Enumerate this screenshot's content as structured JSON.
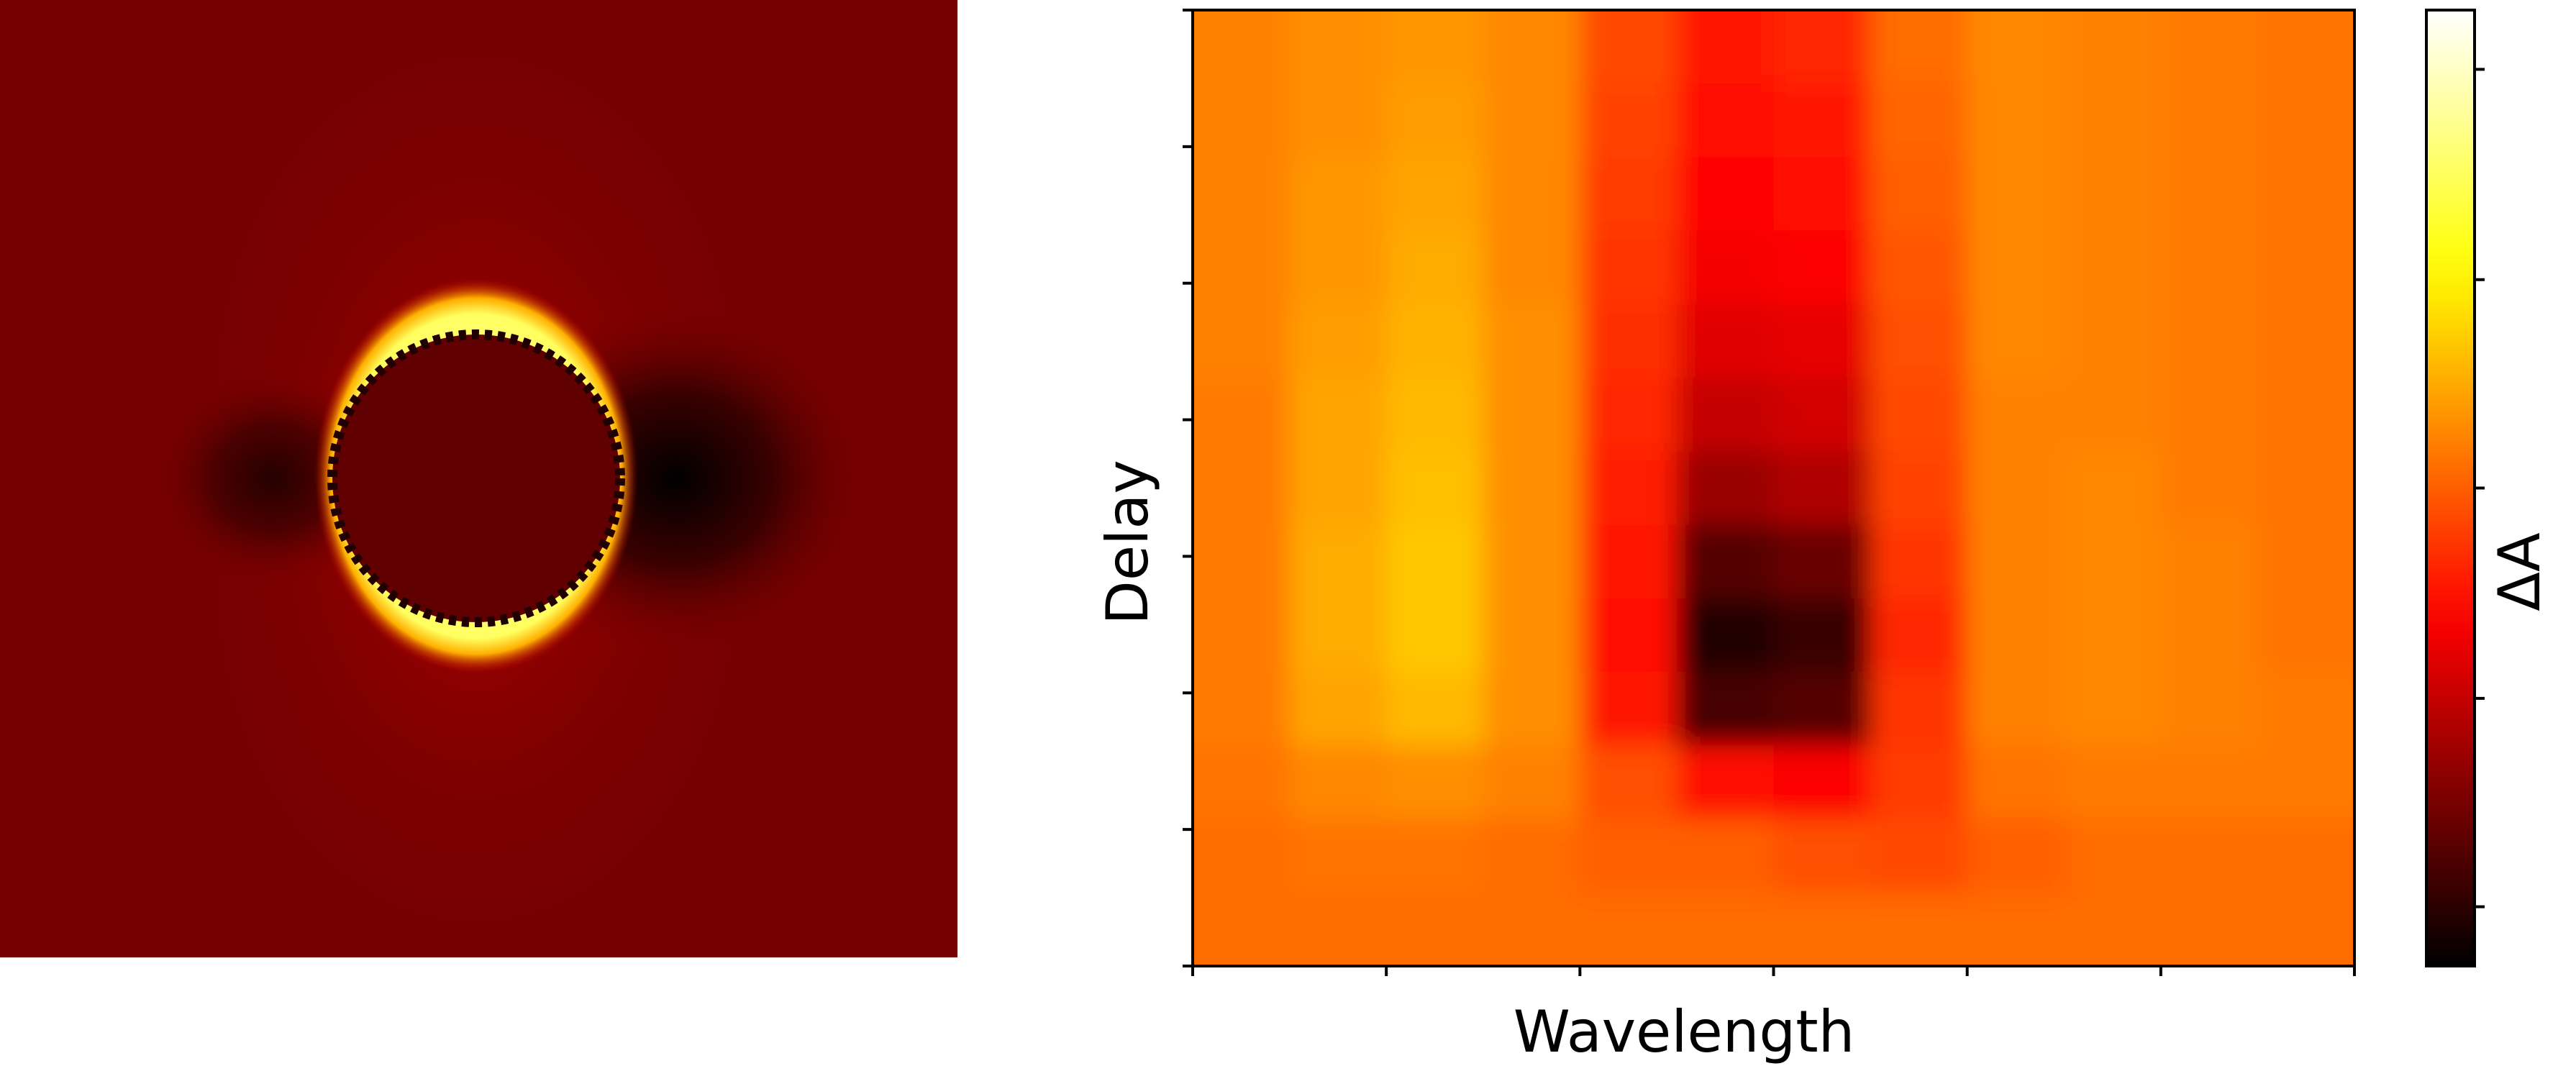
{
  "chart_data": {
    "type": "heatmap",
    "colormap": "hot",
    "xlabel": "Wavelength",
    "ylabel": "Delay",
    "colorbar_label": "ΔA",
    "xlim": [
      0,
      6
    ],
    "xticks": [
      0,
      1,
      2,
      3,
      4,
      5,
      6
    ],
    "ylim": [
      0,
      7
    ],
    "yticks": [
      0,
      1,
      2,
      3,
      4,
      5,
      6,
      7
    ],
    "clim": [
      0,
      1
    ],
    "cticks": [
      0.062,
      0.28,
      0.5,
      0.718,
      0.938
    ],
    "values": [
      [
        0.55,
        0.57,
        0.58,
        0.56,
        0.47,
        0.4,
        0.42,
        0.52,
        0.56,
        0.55,
        0.54,
        0.53
      ],
      [
        0.55,
        0.57,
        0.59,
        0.56,
        0.46,
        0.38,
        0.4,
        0.51,
        0.56,
        0.55,
        0.54,
        0.53
      ],
      [
        0.55,
        0.58,
        0.6,
        0.56,
        0.45,
        0.37,
        0.38,
        0.5,
        0.56,
        0.55,
        0.54,
        0.53
      ],
      [
        0.55,
        0.58,
        0.61,
        0.56,
        0.44,
        0.35,
        0.36,
        0.49,
        0.56,
        0.55,
        0.54,
        0.53
      ],
      [
        0.55,
        0.59,
        0.62,
        0.57,
        0.43,
        0.32,
        0.33,
        0.48,
        0.56,
        0.55,
        0.54,
        0.53
      ],
      [
        0.54,
        0.6,
        0.63,
        0.57,
        0.42,
        0.28,
        0.3,
        0.47,
        0.55,
        0.55,
        0.54,
        0.53
      ],
      [
        0.54,
        0.6,
        0.64,
        0.57,
        0.41,
        0.22,
        0.25,
        0.46,
        0.55,
        0.56,
        0.54,
        0.53
      ],
      [
        0.54,
        0.61,
        0.65,
        0.57,
        0.4,
        0.12,
        0.15,
        0.44,
        0.55,
        0.56,
        0.55,
        0.53
      ],
      [
        0.54,
        0.61,
        0.65,
        0.57,
        0.38,
        0.05,
        0.08,
        0.42,
        0.55,
        0.56,
        0.55,
        0.53
      ],
      [
        0.54,
        0.6,
        0.63,
        0.57,
        0.4,
        0.1,
        0.12,
        0.44,
        0.55,
        0.56,
        0.55,
        0.54
      ],
      [
        0.53,
        0.56,
        0.57,
        0.55,
        0.48,
        0.38,
        0.36,
        0.45,
        0.53,
        0.54,
        0.54,
        0.54
      ],
      [
        0.52,
        0.53,
        0.53,
        0.52,
        0.5,
        0.5,
        0.48,
        0.47,
        0.5,
        0.52,
        0.52,
        0.52
      ],
      [
        0.52,
        0.52,
        0.52,
        0.52,
        0.52,
        0.52,
        0.52,
        0.52,
        0.52,
        0.52,
        0.52,
        0.52
      ]
    ]
  }
}
